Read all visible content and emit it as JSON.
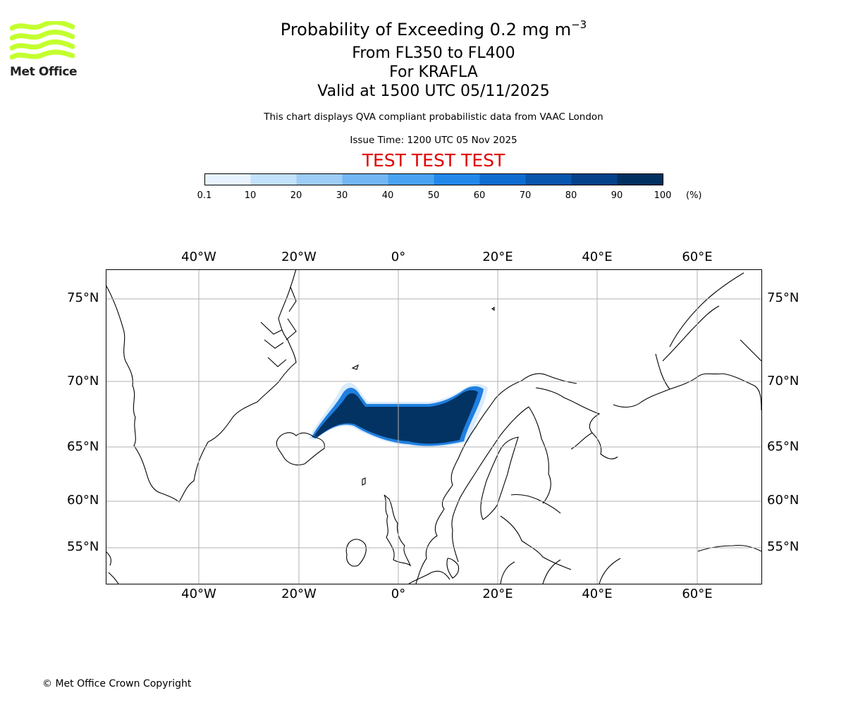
{
  "header": {
    "title_main": "Probability of Exceeding 0.2 mg m",
    "title_superscript": "−3",
    "flight_levels": "From FL350 to FL400",
    "volcano": "For KRAFLA",
    "valid_time": "Valid at 1500 UTC 05/11/2025",
    "description": "This chart displays QVA compliant probabilistic data from VAAC London",
    "issue_time": "Issue Time: 1200 UTC 05 Nov 2025",
    "test_banner": "TEST TEST TEST"
  },
  "logo": {
    "name": "Met Office",
    "icon": "met-office-wave-logo",
    "color": "#c3ff2f"
  },
  "colorbar": {
    "unit": "(%)",
    "ticks": [
      "0.1",
      "10",
      "20",
      "30",
      "40",
      "50",
      "60",
      "70",
      "80",
      "90",
      "100"
    ],
    "bins": [
      {
        "from": 0.1,
        "to": 10,
        "color": "#e8f3ff"
      },
      {
        "from": 10,
        "to": 20,
        "color": "#c2e1fb"
      },
      {
        "from": 20,
        "to": 30,
        "color": "#9dcdf7"
      },
      {
        "from": 30,
        "to": 40,
        "color": "#72b7f4"
      },
      {
        "from": 40,
        "to": 50,
        "color": "#49a3f2"
      },
      {
        "from": 50,
        "to": 60,
        "color": "#2188ea"
      },
      {
        "from": 60,
        "to": 70,
        "color": "#0e6cd0"
      },
      {
        "from": 70,
        "to": 80,
        "color": "#0755ac"
      },
      {
        "from": 80,
        "to": 90,
        "color": "#04418a"
      },
      {
        "from": 90,
        "to": 100,
        "color": "#023060"
      }
    ]
  },
  "map": {
    "longitude_labels": [
      "40°W",
      "20°W",
      "0°",
      "20°E",
      "40°E",
      "60°E"
    ],
    "latitude_labels": [
      "75°N",
      "70°N",
      "65°N",
      "60°N",
      "55°N"
    ],
    "plume_max_color": "#033363",
    "plume_edge_color": "#1f7fe0",
    "grid_color": "#b0b0b0"
  },
  "footer": {
    "copyright": "© Met Office Crown Copyright"
  }
}
